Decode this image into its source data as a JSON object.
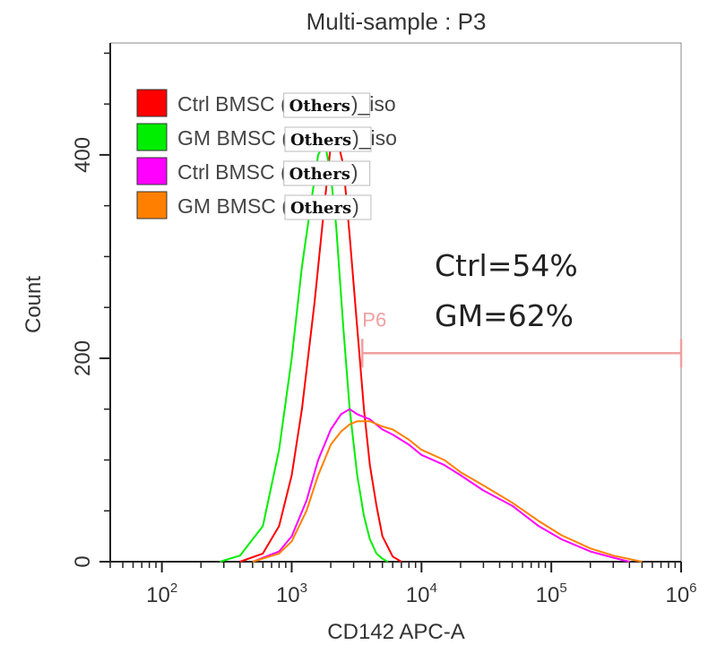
{
  "chart_data": {
    "type": "line",
    "title": "Multi-sample : P3",
    "xlabel": "CD142 APC-A",
    "ylabel": "Count",
    "x_scale": "log",
    "xlim": [
      40,
      1000000
    ],
    "ylim": [
      0,
      510
    ],
    "x_ticks": [
      {
        "value": 100,
        "base": "10",
        "exp": "2"
      },
      {
        "value": 1000,
        "base": "10",
        "exp": "3"
      },
      {
        "value": 10000,
        "base": "10",
        "exp": "4"
      },
      {
        "value": 100000,
        "base": "10",
        "exp": "5"
      },
      {
        "value": 1000000,
        "base": "10",
        "exp": "6"
      }
    ],
    "y_ticks": [
      {
        "value": 0,
        "label": "0"
      },
      {
        "value": 200,
        "label": "200"
      },
      {
        "value": 400,
        "label": "400"
      }
    ],
    "grid": false,
    "legend_position": "top-left",
    "legend": [
      {
        "prefix": "Ctrl BMSC (",
        "boxed": "Others",
        "suffix": ")_iso",
        "color": "#ff0000"
      },
      {
        "prefix": "GM BMSC (",
        "boxed": "Others",
        "suffix": ")_iso",
        "color": "#00ee00"
      },
      {
        "prefix": "Ctrl BMSC (",
        "boxed": "Others",
        "suffix": ")",
        "color": "#ff00ff"
      },
      {
        "prefix": "GM BMSC (",
        "boxed": "Others",
        "suffix": ")",
        "color": "#ff8000"
      }
    ],
    "series": [
      {
        "color": "#ff0000",
        "x": [
          400,
          600,
          800,
          1000,
          1200,
          1500,
          1800,
          2000,
          2200,
          2500,
          2800,
          3200,
          3600,
          4000,
          4500,
          5000,
          6000,
          7000
        ],
        "y": [
          0,
          8,
          35,
          85,
          150,
          255,
          355,
          410,
          420,
          390,
          320,
          230,
          150,
          95,
          55,
          25,
          5,
          0
        ]
      },
      {
        "color": "#00ee00",
        "x": [
          280,
          400,
          600,
          800,
          1000,
          1200,
          1400,
          1600,
          1800,
          2000,
          2200,
          2500,
          2800,
          3200,
          3600,
          4000,
          4500,
          5000,
          5500
        ],
        "y": [
          0,
          6,
          35,
          110,
          200,
          290,
          350,
          400,
          412,
          380,
          330,
          230,
          150,
          85,
          45,
          22,
          8,
          3,
          0
        ]
      },
      {
        "color": "#ff00ff",
        "x": [
          500,
          800,
          1000,
          1300,
          1600,
          2000,
          2400,
          2800,
          3200,
          4000,
          5000,
          6000,
          8000,
          10000,
          15000,
          20000,
          30000,
          50000,
          80000,
          120000,
          200000,
          300000,
          400000
        ],
        "y": [
          0,
          10,
          25,
          60,
          100,
          130,
          145,
          150,
          145,
          140,
          130,
          125,
          115,
          105,
          95,
          85,
          70,
          55,
          35,
          22,
          10,
          4,
          0
        ]
      },
      {
        "color": "#ff8000",
        "x": [
          500,
          800,
          1000,
          1300,
          1600,
          2000,
          2400,
          2800,
          3200,
          4000,
          5000,
          6000,
          8000,
          10000,
          15000,
          20000,
          30000,
          50000,
          80000,
          120000,
          200000,
          300000,
          500000
        ],
        "y": [
          0,
          8,
          20,
          50,
          85,
          115,
          128,
          135,
          138,
          138,
          133,
          130,
          120,
          110,
          100,
          88,
          75,
          58,
          40,
          26,
          13,
          6,
          0
        ]
      }
    ],
    "gate": {
      "label": "P6",
      "x_start": 3500,
      "x_end": 1000000,
      "y": 205,
      "color": "#f0a0a0"
    },
    "annotations": [
      "Ctrl=54%",
      "GM=62%"
    ]
  }
}
